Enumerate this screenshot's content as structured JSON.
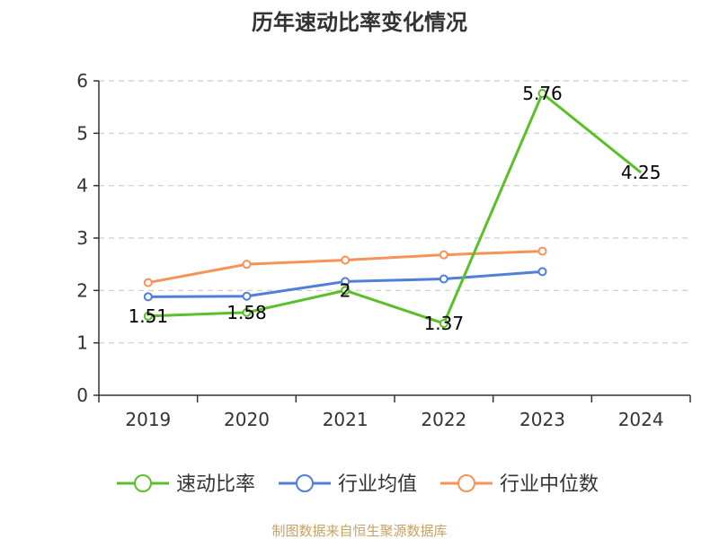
{
  "chart_data": {
    "type": "line",
    "title": "历年速动比率变化情况",
    "categories": [
      "2019",
      "2020",
      "2021",
      "2022",
      "2023",
      "2024"
    ],
    "ylim": [
      0,
      6
    ],
    "yticks": [
      0,
      1,
      2,
      3,
      4,
      5,
      6
    ],
    "grid": true,
    "legend_position": "bottom",
    "series": [
      {
        "name": "速动比率",
        "color": "#5cbf2a",
        "values": [
          1.51,
          1.58,
          2,
          1.37,
          5.76,
          4.25
        ],
        "labels": [
          "1.51",
          "1.58",
          "2",
          "1.37",
          "5.76",
          "4.25"
        ],
        "show_labels": true,
        "show_markers": [
          true,
          true,
          true,
          true,
          true,
          false
        ]
      },
      {
        "name": "行业均值",
        "color": "#4f7fd6",
        "values": [
          1.88,
          1.89,
          2.17,
          2.22,
          2.36,
          null
        ],
        "show_labels": false,
        "show_markers": [
          true,
          true,
          true,
          true,
          true,
          false
        ]
      },
      {
        "name": "行业中位数",
        "color": "#f79259",
        "values": [
          2.15,
          2.5,
          2.58,
          2.68,
          2.75,
          null
        ],
        "show_labels": false,
        "show_markers": [
          true,
          true,
          true,
          true,
          true,
          false
        ]
      }
    ]
  },
  "source_text": "制图数据来自恒生聚源数据库"
}
